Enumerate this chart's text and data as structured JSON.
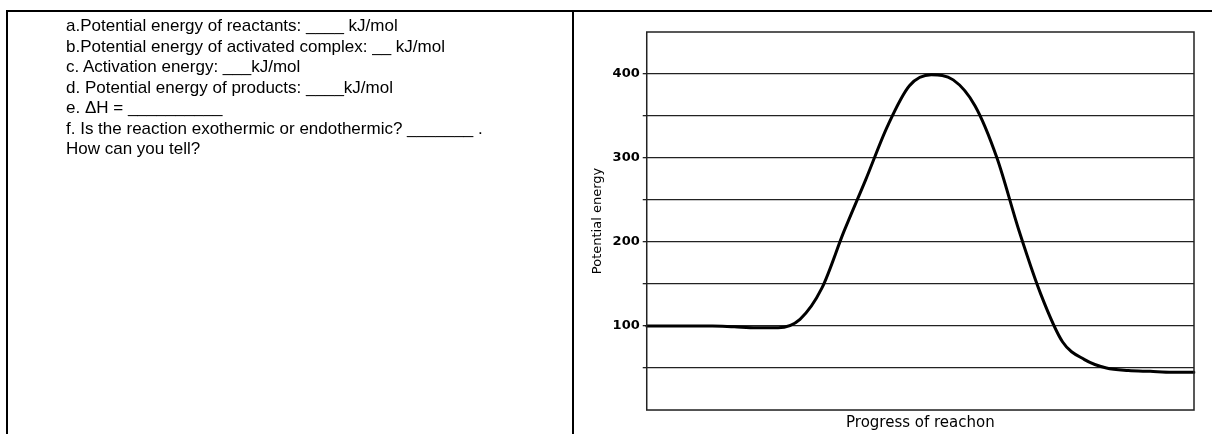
{
  "chart_data": [
    {
      "type": "other",
      "annotations": [
        "a.Potential energy of reactants: ____ kJ/mol",
        "b.Potential energy of activated complex: __ kJ/mol",
        "c.    Activation energy: ___kJ/mol",
        "d.    Potential energy of products: ____kJ/mol",
        "e.   ΔH = __________",
        "f.   Is the reaction exothermic or endothermic? _______ .    How can you tell?"
      ]
    },
    {
      "type": "line",
      "ylabel": "Potential energy",
      "xlabel": "Progress of reachon",
      "categories": [
        null,
        null,
        null,
        null,
        null,
        null,
        null,
        null,
        null,
        null,
        null,
        null,
        null,
        null,
        null,
        null,
        null,
        null,
        null,
        null,
        null,
        null,
        null,
        null,
        null,
        null
      ],
      "series": [
        {
          "color": "#000000",
          "values": [
            100,
            100,
            100,
            100,
            99,
            98,
            98,
            108,
            145,
            212,
            274,
            338,
            386,
            399,
            393,
            362,
            300,
            214,
            138,
            81,
            60,
            50,
            47,
            46,
            45,
            45
          ]
        }
      ],
      "ylim": [
        0,
        450
      ],
      "yticks": [
        {
          "value": 50,
          "label": null
        },
        100,
        {
          "value": 150,
          "label": null
        },
        200,
        {
          "value": 250,
          "label": null
        },
        300,
        {
          "value": 350,
          "label": null
        },
        400
      ],
      "grid": "y",
      "legend": false,
      "marker": "none",
      "line_style": "solid",
      "tick_labels": "y"
    }
  ]
}
